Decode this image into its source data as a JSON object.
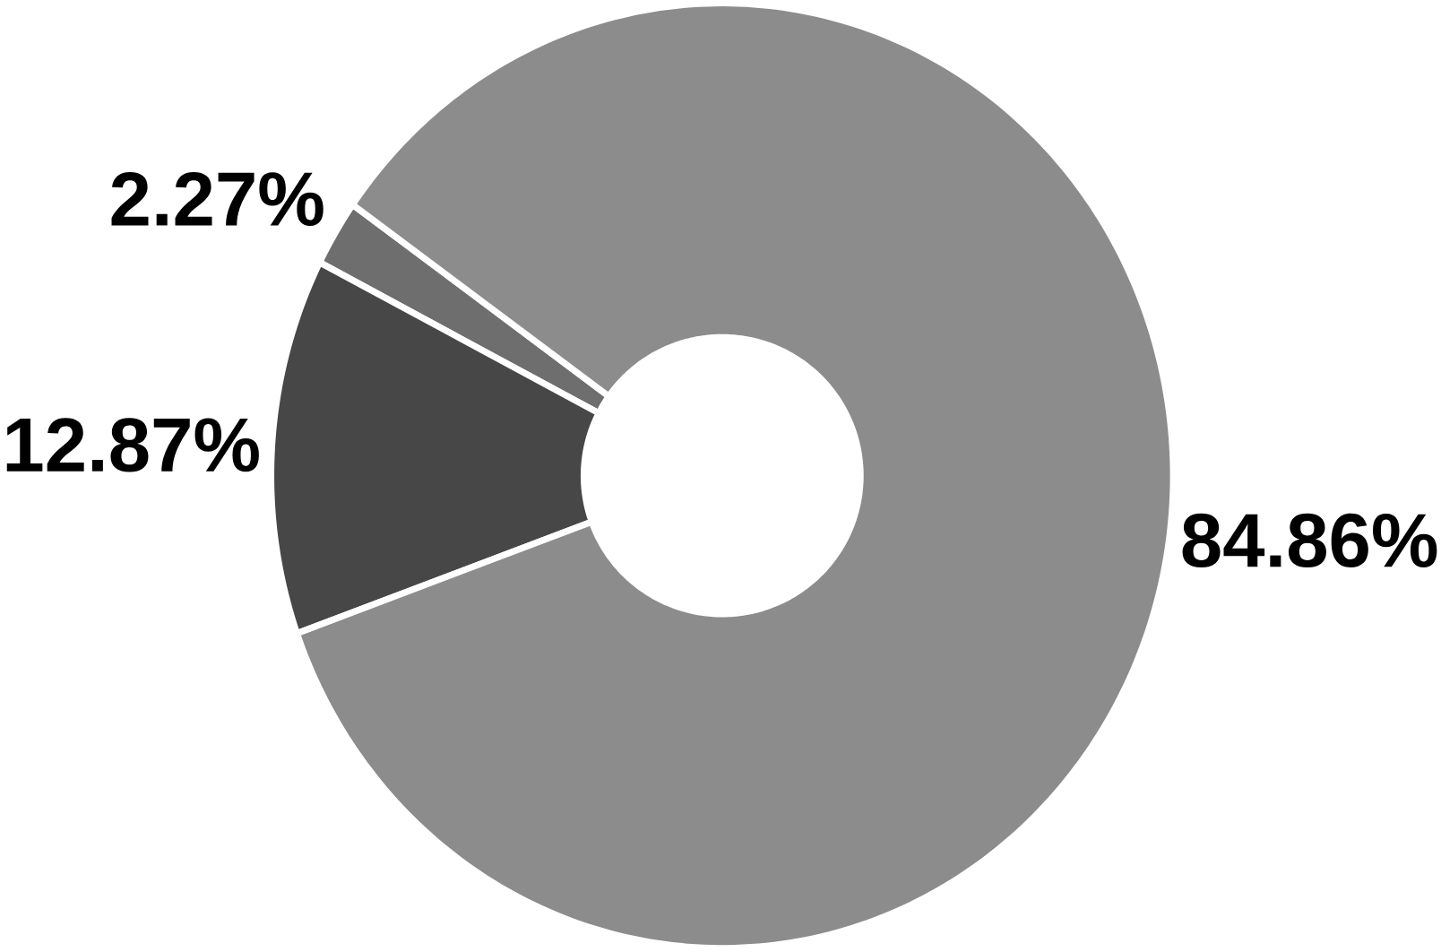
{
  "chart_data": {
    "type": "donut",
    "categories": [
      null,
      null,
      null
    ],
    "values": [
      2.27,
      12.87,
      84.86
    ],
    "colors": [
      "#6e6e6e",
      "#474747",
      "#8c8c8c"
    ],
    "value_labels": [
      "2.27%",
      "12.87%",
      "84.86%"
    ]
  }
}
